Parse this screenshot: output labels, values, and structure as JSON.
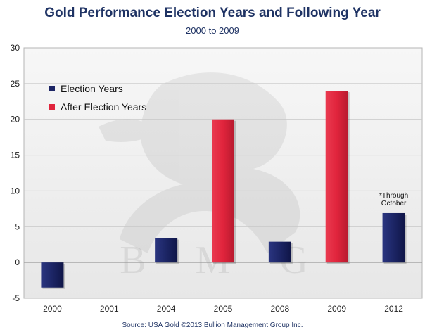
{
  "chart_data": {
    "type": "bar",
    "title": "Gold Performance Election Years and Following Year",
    "subtitle": "2000 to 2009",
    "categories": [
      "2000",
      "2001",
      "2004",
      "2005",
      "2008",
      "2009",
      "2012"
    ],
    "values": [
      -3.5,
      null,
      3.4,
      20,
      2.9,
      24,
      6.9
    ],
    "series_membership": [
      "Election Years",
      "",
      "Election Years",
      "After Election Years",
      "Election Years",
      "After Election Years",
      "Election Years"
    ],
    "series": [
      {
        "name": "Election Years",
        "color": "#1c2565"
      },
      {
        "name": "After Election Years",
        "color": "#e0243c"
      }
    ],
    "ylim": [
      -5,
      30
    ],
    "yticks": [
      -5,
      0,
      5,
      10,
      15,
      20,
      25,
      30
    ],
    "grid": true,
    "legend": "top-left",
    "annotation": {
      "category": "2012",
      "lines": [
        "*Through",
        "October"
      ]
    },
    "watermark": "B M G",
    "source": "Source: USA Gold  ©2013 Bullion Management Group Inc."
  }
}
